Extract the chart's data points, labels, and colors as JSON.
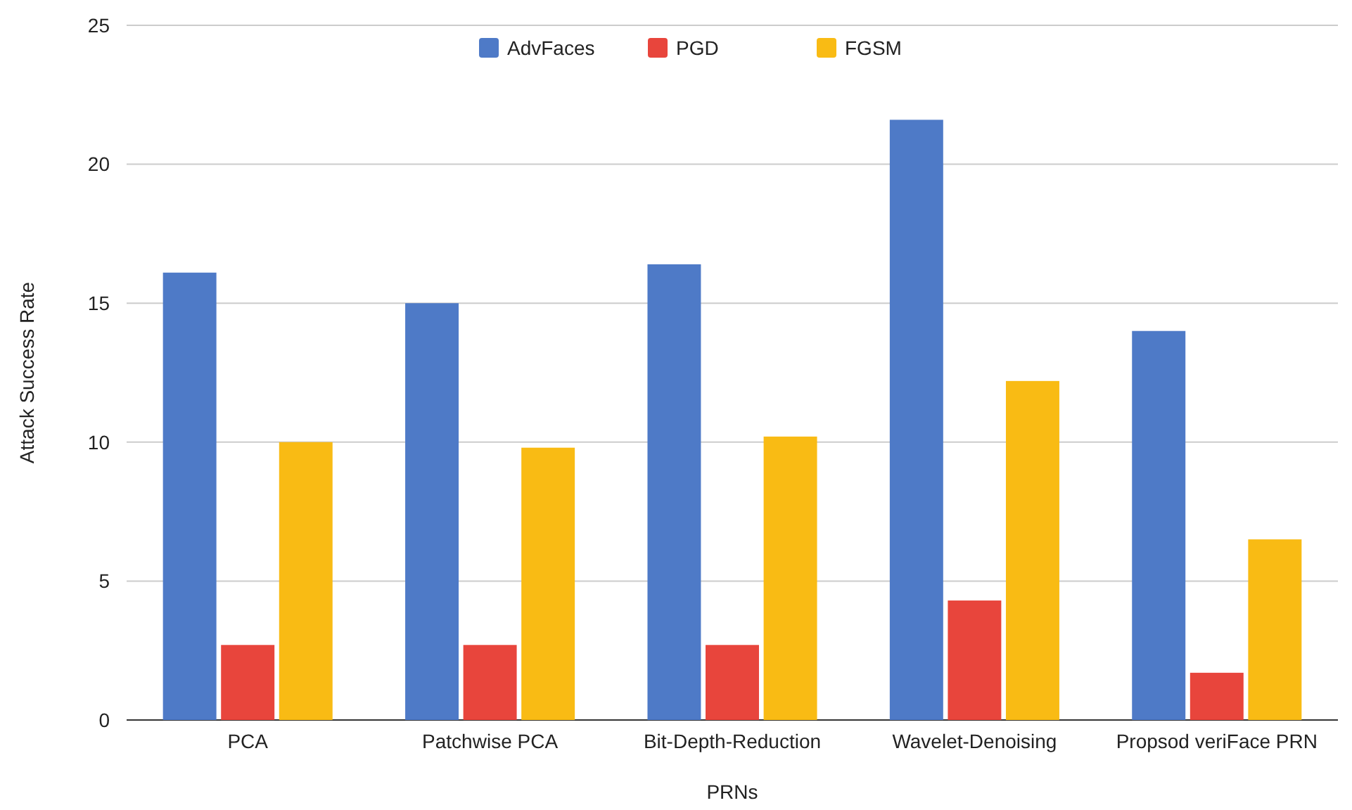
{
  "chart_data": {
    "type": "bar",
    "xlabel": "PRNs",
    "ylabel": "Attack Success Rate",
    "categories": [
      "PCA",
      "Patchwise PCA",
      "Bit-Depth-Reduction",
      "Wavelet-Denoising",
      "Propsod veriFace PRN"
    ],
    "series": [
      {
        "name": "AdvFaces",
        "color": "#4e7ac7",
        "values": [
          16.1,
          15.0,
          16.4,
          21.6,
          14.0
        ]
      },
      {
        "name": "PGD",
        "color": "#e8453c",
        "values": [
          2.7,
          2.7,
          2.7,
          4.3,
          1.7
        ]
      },
      {
        "name": "FGSM",
        "color": "#f9bb14",
        "values": [
          10.0,
          9.8,
          10.2,
          12.2,
          6.5
        ]
      }
    ],
    "ylim": [
      0,
      25
    ],
    "yticks": [
      0,
      5,
      10,
      15,
      20,
      25
    ],
    "grid": "y",
    "legend": "top"
  }
}
